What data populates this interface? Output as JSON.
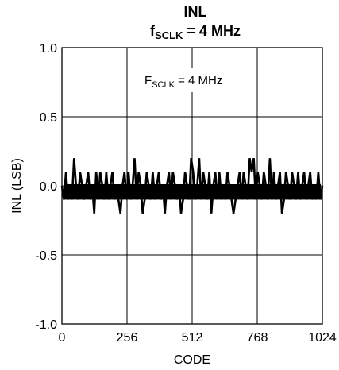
{
  "chart_data": {
    "type": "line",
    "title": "INL",
    "subtitle": {
      "main": "f",
      "sub": "SCLK",
      "rest": " = 4 MHz"
    },
    "annotation": {
      "main": "F",
      "sub": "SCLK",
      "rest": " = 4 MHz"
    },
    "xlabel": "CODE",
    "ylabel": "INL (LSB)",
    "xlim": [
      0,
      1024
    ],
    "ylim": [
      -1.0,
      1.0
    ],
    "x_ticks": [
      0,
      256,
      512,
      768,
      1024
    ],
    "x_tick_labels": [
      "0",
      "256",
      "512",
      "768",
      "1024"
    ],
    "y_ticks": [
      1.0,
      0.5,
      0.0,
      -0.5,
      -1.0
    ],
    "y_tick_labels": [
      "1.0",
      "0.5",
      "0.0",
      "-0.5",
      "-1.0"
    ],
    "grid": true,
    "series": [
      {
        "values": [
          0,
          -0.1,
          0.1,
          -0.1,
          0,
          -0.1,
          0.2,
          0,
          -0.1,
          0.1,
          0,
          -0.1,
          0,
          0.1,
          -0.1,
          0,
          -0.2,
          0.1,
          -0.1,
          0.1,
          0,
          -0.1,
          0.1,
          -0.1,
          0,
          0.1,
          -0.1,
          0,
          -0.1,
          -0.2,
          0,
          0.1,
          -0.1,
          0.1,
          -0.1,
          0,
          0.2,
          -0.1,
          0.1,
          0,
          -0.2,
          -0.1,
          0.1,
          0,
          -0.1,
          0.1,
          -0.1,
          0,
          0.1,
          -0.1,
          0,
          -0.2,
          0,
          0.1,
          -0.1,
          0.1,
          0,
          -0.1,
          0,
          -0.2,
          -0.1,
          0.1,
          0,
          -0.1,
          0.2,
          0.1,
          -0.1,
          0,
          0.2,
          -0.1,
          0.1,
          0,
          -0.1,
          0.1,
          -0.2,
          0,
          0.1,
          -0.1,
          0.1,
          -0.1,
          0,
          -0.1,
          0.1,
          0,
          -0.1,
          -0.2,
          -0.1,
          0,
          0.1,
          -0.1,
          0.1,
          0,
          -0.1,
          0.2,
          0.1,
          0.2,
          -0.1,
          0.1,
          0,
          -0.1,
          0.1,
          0,
          -0.1,
          0.2,
          -0.1,
          0.1,
          -0.1,
          0,
          0.1,
          -0.2,
          -0.1,
          0.1,
          0,
          -0.1,
          0.1,
          0,
          -0.1,
          0.1,
          -0.1,
          0,
          0.1,
          -0.1,
          0,
          0.1,
          -0.1,
          0,
          -0.1,
          0.1,
          -0.1,
          0
        ]
      }
    ]
  }
}
